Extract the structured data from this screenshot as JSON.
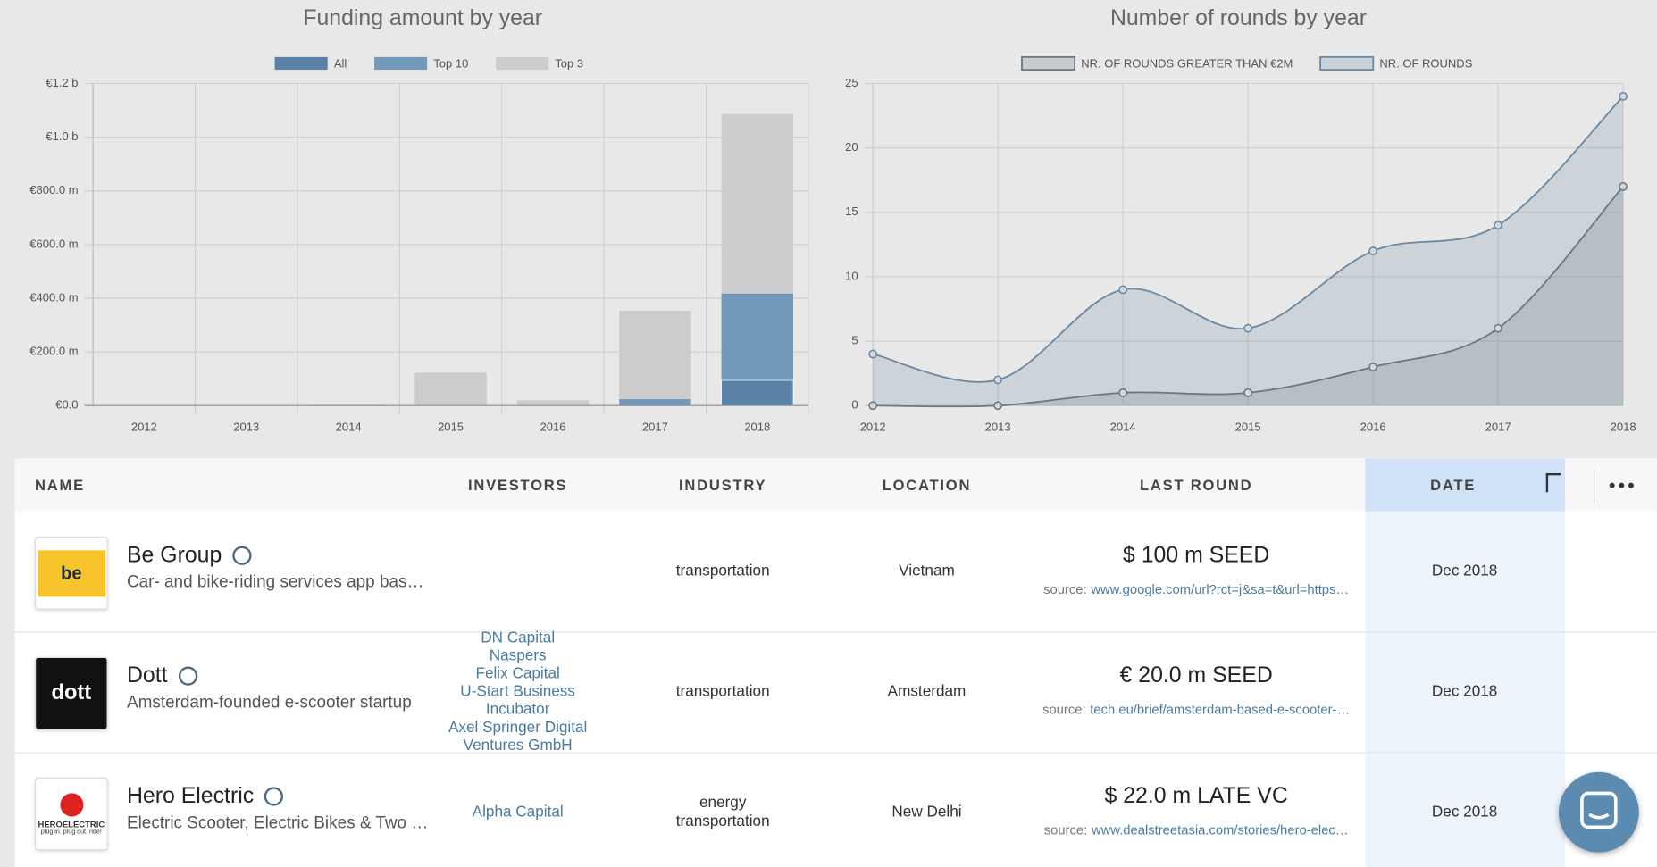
{
  "chart_data": [
    {
      "type": "bar",
      "title": "Funding amount by year",
      "categories": [
        "2012",
        "2013",
        "2014",
        "2015",
        "2016",
        "2017",
        "2018"
      ],
      "series": [
        {
          "name": "All",
          "color": "#5a82a6",
          "values": [
            0,
            0,
            0,
            0,
            0,
            0,
            94
          ]
        },
        {
          "name": "Top 10",
          "color": "#7399bb",
          "values": [
            0,
            0,
            0,
            0,
            0,
            24,
            417
          ]
        },
        {
          "name": "Top 3",
          "color": "#cccccc",
          "values": [
            0,
            0,
            4,
            122,
            20,
            354,
            1086
          ]
        }
      ],
      "ylim": [
        0,
        1200
      ],
      "yticks": [
        {
          "value": 0,
          "label": "€0.0"
        },
        {
          "value": 200,
          "label": "€200.0 m"
        },
        {
          "value": 400,
          "label": "€400.0 m"
        },
        {
          "value": 600,
          "label": "€600.0 m"
        },
        {
          "value": 800,
          "label": "€800.0 m"
        },
        {
          "value": 1000,
          "label": "€1.0 b"
        },
        {
          "value": 1200,
          "label": "€1.2 b"
        }
      ],
      "grid": true
    },
    {
      "type": "area",
      "title": "Number of rounds by year",
      "categories": [
        "2012",
        "2013",
        "2014",
        "2015",
        "2016",
        "2017",
        "2018"
      ],
      "series": [
        {
          "name": "NR. OF ROUNDS GREATER THAN €2M",
          "color": "#6b7680",
          "values": [
            0,
            0,
            1,
            1,
            3,
            6,
            17
          ]
        },
        {
          "name": "NR. OF ROUNDS",
          "color": "#6a87a3",
          "values": [
            4,
            2,
            9,
            6,
            12,
            14,
            24
          ]
        }
      ],
      "ylim": [
        0,
        25
      ],
      "yticks": [
        0,
        5,
        10,
        15,
        20,
        25
      ],
      "grid": true
    }
  ],
  "table": {
    "columns": [
      "NAME",
      "INVESTORS",
      "INDUSTRY",
      "LOCATION",
      "LAST ROUND",
      "DATE"
    ],
    "source_label": "source:",
    "rows": [
      {
        "name": "Be Group",
        "logo": "be",
        "description": "Car- and bike-riding services app bas…",
        "investors": [],
        "industry": [
          "transportation"
        ],
        "location": "Vietnam",
        "last_round": "$ 100 m SEED",
        "source": "www.google.com/url?rct=j&sa=t&url=https…",
        "date": "Dec 2018"
      },
      {
        "name": "Dott",
        "logo": "dott",
        "description": "Amsterdam-founded e-scooter startup",
        "investors": [
          "DN Capital",
          "Naspers",
          "Felix Capital",
          "U-Start Business",
          "Incubator",
          "Axel Springer Digital",
          "Ventures GmbH"
        ],
        "industry": [
          "transportation"
        ],
        "location": "Amsterdam",
        "last_round": "€ 20.0 m SEED",
        "source": "tech.eu/brief/amsterdam-based-e-scooter-…",
        "date": "Dec 2018"
      },
      {
        "name": "Hero Electric",
        "logo": "HEROELECTRIC",
        "logo_tagline": "plug in. plug out. ride!",
        "description": "Electric Scooter, Electric Bikes & Two …",
        "investors": [
          "Alpha Capital"
        ],
        "industry": [
          "energy",
          "transportation"
        ],
        "location": "New Delhi",
        "last_round": "$ 22.0 m LATE VC",
        "source": "www.dealstreetasia.com/stories/hero-elec…",
        "date": "Dec 2018"
      }
    ]
  }
}
